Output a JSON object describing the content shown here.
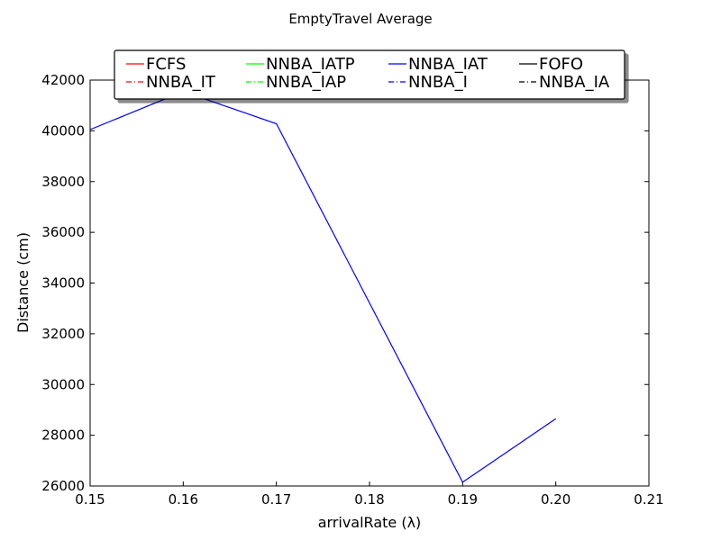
{
  "chart_data": {
    "type": "line",
    "title": "EmptyTravel Average",
    "xlabel": "arrivalRate (λ)",
    "ylabel": "Distance (cm)",
    "xlim": [
      0.15,
      0.21
    ],
    "ylim": [
      26000,
      42000
    ],
    "xticks": [
      "0.15",
      "0.16",
      "0.17",
      "0.18",
      "0.19",
      "0.20",
      "0.21"
    ],
    "yticks": [
      "26000",
      "28000",
      "30000",
      "32000",
      "34000",
      "36000",
      "38000",
      "40000",
      "42000"
    ],
    "grid": false,
    "legend_position": "top-center",
    "legend_columns": 4,
    "series": [
      {
        "name": "FCFS",
        "color": "#ff0000",
        "style": "solid",
        "x": [],
        "y": []
      },
      {
        "name": "NNBA_IT",
        "color": "#ff0000",
        "style": "dashdot",
        "x": [],
        "y": []
      },
      {
        "name": "NNBA_IATP",
        "color": "#00ff00",
        "style": "solid",
        "x": [],
        "y": []
      },
      {
        "name": "NNBA_IAP",
        "color": "#00ff00",
        "style": "dashdot",
        "x": [],
        "y": []
      },
      {
        "name": "NNBA_IAT",
        "color": "#0000ff",
        "style": "solid",
        "x": [
          0.15,
          0.16,
          0.17,
          0.19,
          0.2
        ],
        "y": [
          40050,
          41550,
          40280,
          26150,
          28650
        ]
      },
      {
        "name": "NNBA_I",
        "color": "#0000ff",
        "style": "dashdot",
        "x": [],
        "y": []
      },
      {
        "name": "FOFO",
        "color": "#000000",
        "style": "solid",
        "x": [],
        "y": []
      },
      {
        "name": "NNBA_IA",
        "color": "#000000",
        "style": "dashdot",
        "x": [],
        "y": []
      }
    ]
  }
}
